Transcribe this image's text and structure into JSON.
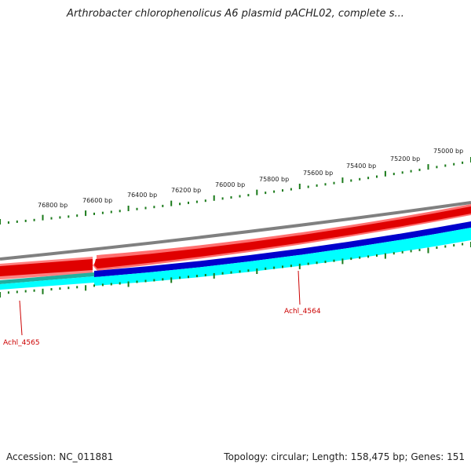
{
  "header": {
    "title": "Arthrobacter chlorophenolicus A6 plasmid pACHL02, complete s..."
  },
  "footer": {
    "accession": "Accession: NC_011881",
    "summary": "Topology: circular; Length: 158,475 bp; Genes: 151"
  },
  "scale": {
    "ticks": [
      "76800 bp",
      "76600 bp",
      "76400 bp",
      "76200 bp",
      "76000 bp",
      "75800 bp",
      "75600 bp",
      "75400 bp",
      "75200 bp",
      "75000 bp"
    ]
  },
  "genes": [
    {
      "label": "Achl_4565"
    },
    {
      "label": "Achl_4564"
    }
  ],
  "colors": {
    "backbone": "#808080",
    "forward_strand": "#e00000",
    "forward_strand_light": "#ff7070",
    "reverse_strand": "#0000cc",
    "reverse_cyan": "#00ffff",
    "teal": "#20b0a0",
    "ticks": "#1a7a1a",
    "gene_label": "#cc0000"
  }
}
